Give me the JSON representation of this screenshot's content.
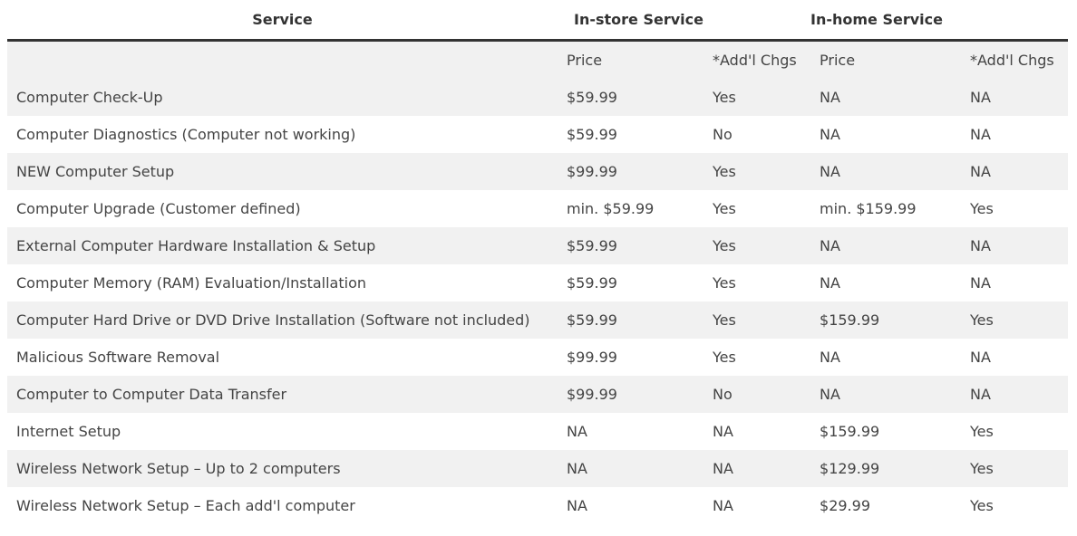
{
  "headers": {
    "service": "Service",
    "in_store": "In-store Service",
    "in_home": "In-home Service"
  },
  "subheaders": {
    "in_store_price": "Price",
    "in_store_addl": "*Add'l Chgs",
    "in_home_price": "Price",
    "in_home_addl": "*Add'l Chgs"
  },
  "rows": [
    {
      "service": "Computer Check-Up",
      "store_price": "$59.99",
      "store_addl": "Yes",
      "home_price": "NA",
      "home_addl": "NA"
    },
    {
      "service": "Computer Diagnostics (Computer not working)",
      "store_price": "$59.99",
      "store_addl": "No",
      "home_price": "NA",
      "home_addl": "NA"
    },
    {
      "service": "NEW Computer Setup",
      "store_price": "$99.99",
      "store_addl": "Yes",
      "home_price": "NA",
      "home_addl": "NA"
    },
    {
      "service": "Computer Upgrade (Customer defined)",
      "store_price": "min. $59.99",
      "store_addl": "Yes",
      "home_price": "min. $159.99",
      "home_addl": "Yes"
    },
    {
      "service": "External Computer Hardware Installation & Setup",
      "store_price": "$59.99",
      "store_addl": "Yes",
      "home_price": "NA",
      "home_addl": "NA"
    },
    {
      "service": "Computer Memory (RAM) Evaluation/Installation",
      "store_price": "$59.99",
      "store_addl": "Yes",
      "home_price": "NA",
      "home_addl": "NA"
    },
    {
      "service": "Computer Hard Drive or DVD Drive Installation (Software not included)",
      "store_price": "$59.99",
      "store_addl": "Yes",
      "home_price": "$159.99",
      "home_addl": "Yes"
    },
    {
      "service": "Malicious Software Removal",
      "store_price": "$99.99",
      "store_addl": "Yes",
      "home_price": "NA",
      "home_addl": "NA"
    },
    {
      "service": "Computer to Computer Data Transfer",
      "store_price": "$99.99",
      "store_addl": "No",
      "home_price": "NA",
      "home_addl": "NA"
    },
    {
      "service": "Internet Setup",
      "store_price": "NA",
      "store_addl": "NA",
      "home_price": "$159.99",
      "home_addl": "Yes"
    },
    {
      "service": "Wireless Network Setup – Up to 2 computers",
      "store_price": "NA",
      "store_addl": "NA",
      "home_price": "$129.99",
      "home_addl": "Yes"
    },
    {
      "service": "Wireless Network Setup – Each add'l computer",
      "store_price": "NA",
      "store_addl": "NA",
      "home_price": "$29.99",
      "home_addl": "Yes"
    }
  ]
}
